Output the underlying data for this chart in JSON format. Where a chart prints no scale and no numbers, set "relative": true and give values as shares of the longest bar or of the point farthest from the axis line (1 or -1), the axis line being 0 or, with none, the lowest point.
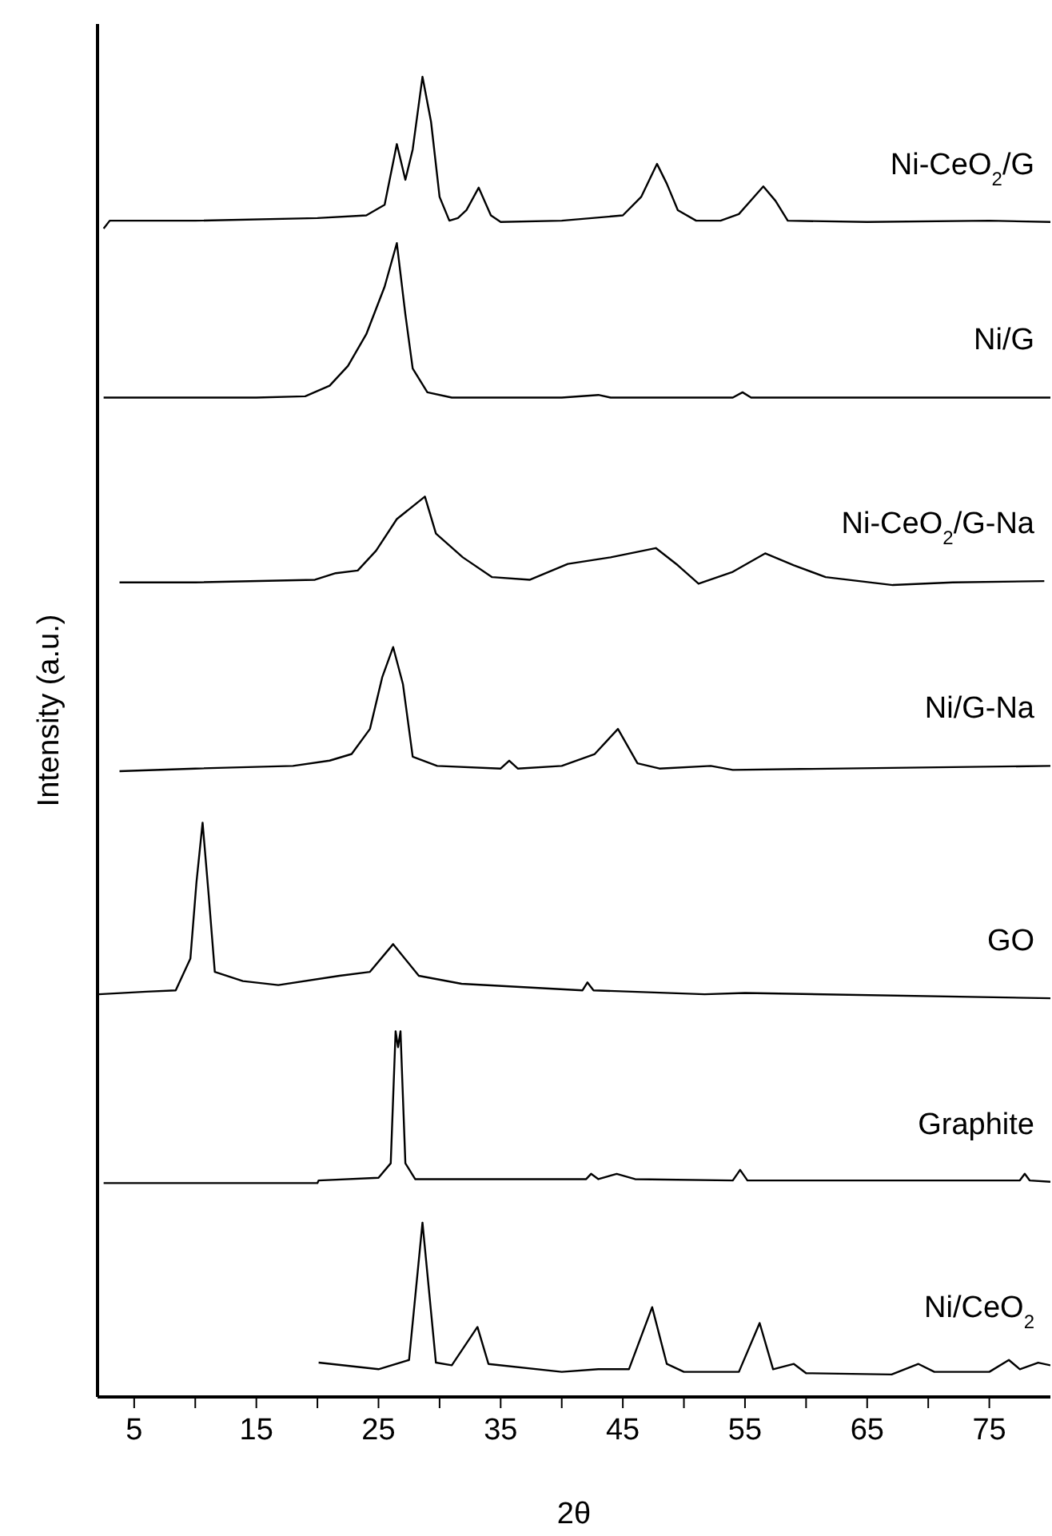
{
  "chart_data": {
    "type": "line",
    "relative": true,
    "xlabel": "2θ",
    "ylabel": "Intensity (a.u.)",
    "xlim": [
      2,
      80
    ],
    "xticks": [
      5,
      {
        "value": 10,
        "label": null
      },
      15,
      {
        "value": 20,
        "label": null
      },
      25,
      {
        "value": 30,
        "label": null
      },
      35,
      {
        "value": 40,
        "label": null
      },
      45,
      {
        "value": 50,
        "label": null
      },
      55,
      {
        "value": 60,
        "label": null
      },
      65,
      {
        "value": 70,
        "label": null
      },
      75
    ],
    "grid": false,
    "legend": false,
    "marker": "none",
    "line_style": "solid",
    "series": [
      {
        "name": "Ni-CeO$_{2}$/G",
        "color": "#000000",
        "x": [
          2.5,
          3,
          10,
          20,
          24,
          25.5,
          26.5,
          27.2,
          27.8,
          28.6,
          29.3,
          30,
          30.8,
          31.5,
          32.2,
          33.2,
          34.2,
          35,
          40,
          45,
          46.5,
          47.8,
          48.6,
          49.5,
          51,
          53,
          54.5,
          56.5,
          57.5,
          58.5,
          65,
          75,
          80
        ],
        "values": [
          0.885,
          0.891,
          0.891,
          0.893,
          0.895,
          0.903,
          0.949,
          0.922,
          0.945,
          1,
          0.966,
          0.909,
          0.891,
          0.893,
          0.899,
          0.916,
          0.895,
          0.89,
          0.891,
          0.895,
          0.909,
          0.934,
          0.919,
          0.899,
          0.891,
          0.891,
          0.896,
          0.917,
          0.906,
          0.891,
          0.89,
          0.891,
          0.89
        ]
      },
      {
        "name": "Ni/G",
        "color": "#000000",
        "x": [
          2.5,
          15,
          19,
          21,
          22.5,
          24,
          25.5,
          26.5,
          27.2,
          27.8,
          29,
          31,
          40,
          43,
          44,
          54,
          54.8,
          55.5,
          80
        ],
        "values": [
          0.757,
          0.757,
          0.758,
          0.766,
          0.781,
          0.805,
          0.841,
          0.874,
          0.82,
          0.779,
          0.761,
          0.757,
          0.757,
          0.759,
          0.757,
          0.757,
          0.761,
          0.757,
          0.757
        ]
      },
      {
        "name": "Ni-CeO$_{2}$/G-Na",
        "color": "#000000",
        "x": [
          3.8,
          10,
          19.8,
          21.5,
          23.3,
          24.8,
          26.5,
          28.8,
          29.7,
          31.9,
          34.3,
          37.4,
          40.5,
          44,
          47.7,
          49.5,
          51.2,
          54,
          56.65,
          59,
          61.6,
          67.1,
          72,
          79.5
        ],
        "values": [
          0.617,
          0.617,
          0.619,
          0.624,
          0.626,
          0.641,
          0.665,
          0.682,
          0.654,
          0.636,
          0.621,
          0.619,
          0.631,
          0.636,
          0.643,
          0.63,
          0.616,
          0.625,
          0.639,
          0.63,
          0.621,
          0.615,
          0.617,
          0.618
        ]
      },
      {
        "name": "Ni/G-Na",
        "color": "#000000",
        "x": [
          3.8,
          10,
          18,
          21,
          22.8,
          24.3,
          25.3,
          26.2,
          27,
          27.8,
          29.8,
          35,
          35.7,
          36.4,
          40,
          42.7,
          44.6,
          46.2,
          48,
          52.2,
          54,
          80
        ],
        "values": [
          0.474,
          0.476,
          0.478,
          0.482,
          0.487,
          0.506,
          0.545,
          0.568,
          0.54,
          0.485,
          0.478,
          0.476,
          0.482,
          0.476,
          0.478,
          0.487,
          0.506,
          0.48,
          0.476,
          0.478,
          0.475,
          0.478
        ]
      },
      {
        "name": "GO",
        "color": "#000000",
        "x": [
          2.1,
          6,
          8.4,
          9.6,
          10.1,
          10.6,
          11.1,
          11.6,
          13.9,
          16.8,
          21.8,
          24.3,
          26.2,
          28.3,
          31.8,
          41.7,
          42.1,
          42.6,
          51.7,
          55,
          80
        ],
        "values": [
          0.305,
          0.307,
          0.308,
          0.332,
          0.39,
          0.435,
          0.38,
          0.322,
          0.315,
          0.312,
          0.319,
          0.322,
          0.343,
          0.319,
          0.313,
          0.308,
          0.314,
          0.308,
          0.305,
          0.306,
          0.302
        ]
      },
      {
        "name": "Graphite",
        "color": "#000000",
        "x": [
          2.5,
          20,
          20.1,
          25,
          26,
          26.4,
          26.6,
          26.8,
          27.2,
          28,
          42,
          42.4,
          43,
          44.5,
          46,
          54,
          54.6,
          55.2,
          77.5,
          77.9,
          78.3,
          80
        ],
        "values": [
          0.162,
          0.162,
          0.164,
          0.166,
          0.177,
          0.277,
          0.265,
          0.277,
          0.177,
          0.165,
          0.165,
          0.169,
          0.165,
          0.169,
          0.165,
          0.164,
          0.172,
          0.164,
          0.164,
          0.169,
          0.164,
          0.163
        ]
      },
      {
        "name": "Ni/CeO$_{2}$",
        "color": "#000000",
        "x": [
          20.1,
          25,
          27.5,
          28.6,
          29.7,
          31,
          33.1,
          34,
          40,
          43,
          45.5,
          47.4,
          48.6,
          50,
          54.5,
          56.2,
          57.3,
          59,
          60,
          67,
          69.2,
          70.5,
          75,
          76.6,
          77.5,
          79,
          80
        ],
        "values": [
          0.026,
          0.021,
          0.028,
          0.132,
          0.026,
          0.024,
          0.053,
          0.025,
          0.019,
          0.021,
          0.021,
          0.068,
          0.025,
          0.019,
          0.019,
          0.056,
          0.021,
          0.025,
          0.018,
          0.017,
          0.025,
          0.019,
          0.019,
          0.028,
          0.021,
          0.026,
          0.024
        ]
      }
    ]
  }
}
